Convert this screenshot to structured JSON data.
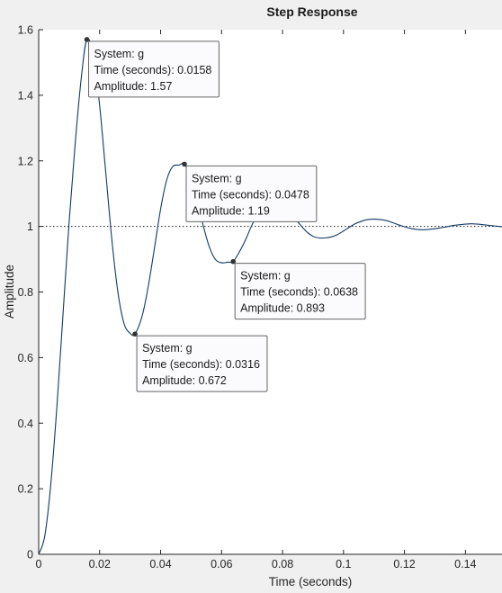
{
  "chart_data": {
    "type": "line",
    "title": "Step Response",
    "xlabel": "Time (seconds)",
    "ylabel": "Amplitude",
    "xlim": [
      0,
      0.152
    ],
    "ylim": [
      0,
      1.6
    ],
    "xticks": [
      0,
      0.02,
      0.04,
      0.06,
      0.08,
      0.1,
      0.12,
      0.14
    ],
    "xtick_labels": [
      "0",
      "0.02",
      "0.04",
      "0.06",
      "0.08",
      "0.1",
      "0.12",
      "0.14"
    ],
    "yticks": [
      0,
      0.2,
      0.4,
      0.6,
      0.8,
      1,
      1.2,
      1.4,
      1.6
    ],
    "ytick_labels": [
      "0",
      "0.2",
      "0.4",
      "0.6",
      "0.8",
      "1",
      "1.2",
      "1.4",
      "1.6"
    ],
    "grid": false,
    "reference_line": {
      "y": 1,
      "style": "dotted"
    },
    "series": [
      {
        "color": "#0f3a66",
        "x": [
          0,
          0.002,
          0.004,
          0.006,
          0.008,
          0.01,
          0.012,
          0.014,
          0.0158,
          0.018,
          0.02,
          0.022,
          0.024,
          0.026,
          0.028,
          0.03,
          0.0316,
          0.034,
          0.036,
          0.038,
          0.04,
          0.042,
          0.044,
          0.046,
          0.0478,
          0.05,
          0.052,
          0.054,
          0.056,
          0.058,
          0.06,
          0.062,
          0.0638,
          0.066,
          0.068,
          0.07,
          0.072,
          0.074,
          0.076,
          0.078,
          0.08,
          0.082,
          0.084,
          0.086,
          0.088,
          0.09,
          0.092,
          0.094,
          0.096,
          0.098,
          0.1,
          0.102,
          0.104,
          0.106,
          0.108,
          0.11,
          0.112,
          0.114,
          0.116,
          0.118,
          0.12,
          0.122,
          0.124,
          0.126,
          0.128,
          0.13,
          0.132,
          0.134,
          0.136,
          0.138,
          0.14,
          0.142,
          0.144,
          0.146,
          0.148,
          0.15,
          0.152
        ],
        "y": [
          0,
          0.056,
          0.216,
          0.454,
          0.735,
          1.015,
          1.256,
          1.455,
          1.57,
          1.522,
          1.369,
          1.165,
          0.96,
          0.799,
          0.704,
          0.674,
          0.672,
          0.729,
          0.82,
          0.935,
          1.053,
          1.142,
          1.183,
          1.187,
          1.19,
          1.145,
          1.078,
          1.002,
          0.937,
          0.899,
          0.889,
          0.891,
          0.893,
          0.925,
          0.962,
          1.005,
          1.04,
          1.058,
          1.065,
          1.063,
          1.062,
          1.048,
          1.025,
          1.003,
          0.983,
          0.97,
          0.965,
          0.965,
          0.968,
          0.975,
          0.986,
          0.998,
          1.009,
          1.016,
          1.021,
          1.022,
          1.021,
          1.018,
          1.012,
          1.005,
          0.999,
          0.994,
          0.991,
          0.99,
          0.991,
          0.993,
          0.996,
          0.999,
          1.003,
          1.005,
          1.007,
          1.008,
          1.007,
          1.005,
          1.003,
          1.001,
          0.999
        ]
      }
    ],
    "datatips": [
      {
        "x": 0.0158,
        "y": 1.57,
        "lines": [
          "System: g",
          "Time (seconds): 0.0158",
          "Amplitude: 1.57"
        ]
      },
      {
        "x": 0.0316,
        "y": 0.672,
        "lines": [
          "System: g",
          "Time (seconds): 0.0316",
          "Amplitude: 0.672"
        ]
      },
      {
        "x": 0.0478,
        "y": 1.19,
        "lines": [
          "System: g",
          "Time (seconds): 0.0478",
          "Amplitude: 1.19"
        ]
      },
      {
        "x": 0.0638,
        "y": 0.893,
        "lines": [
          "System: g",
          "Time (seconds): 0.0638",
          "Amplitude: 0.893"
        ]
      }
    ]
  }
}
